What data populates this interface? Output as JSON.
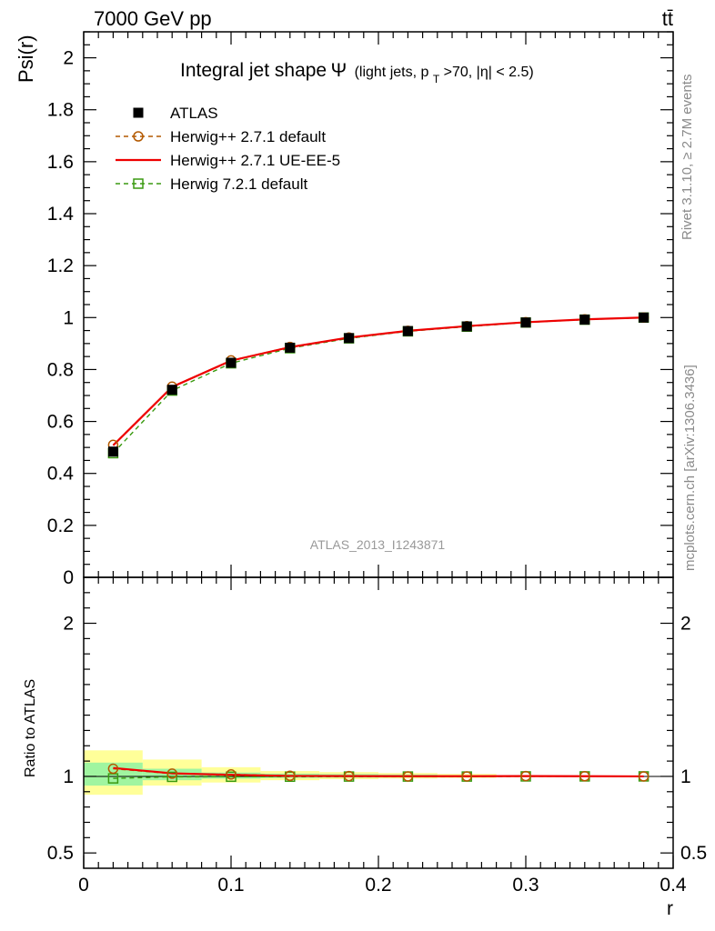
{
  "header": {
    "energy_label": "7000 GeV pp",
    "process_label": "tt̄"
  },
  "side_labels": {
    "rivet": "Rivet 3.1.10, ≥ 2.7M events",
    "mcplots": "mcplots.cern.ch [arXiv:1306.3436]"
  },
  "watermark": "ATLAS_2013_I1243871",
  "colors": {
    "atlas": "#000000",
    "herwigpp_default": "#b35900",
    "herwigpp_ueee5": "#ee0000",
    "herwig7_default": "#3a9a10",
    "band_stat": "#a0f5a0",
    "band_total": "#ffff99"
  },
  "chart_data": [
    {
      "type": "line",
      "title_main": "Integral jet shape",
      "title_symbol": "Ψ",
      "title_sub": "(light jets, p",
      "title_sub_index": "T",
      "title_sub_rest": ">70, |η| < 2.5)",
      "xlabel": "r",
      "ylabel": "Psi(r)",
      "xlim": [
        0,
        0.4
      ],
      "ylim": [
        0,
        2.1
      ],
      "yticks": [
        0,
        0.2,
        0.4,
        0.6,
        0.8,
        1,
        1.2,
        1.4,
        1.6,
        1.8,
        2
      ],
      "ytick_labels": [
        "0",
        "0.2",
        "0.4",
        "0.6",
        "0.8",
        "1",
        "1.2",
        "1.4",
        "1.6",
        "1.8",
        "2"
      ],
      "legend_position": "top-left",
      "x": [
        0.02,
        0.06,
        0.1,
        0.14,
        0.18,
        0.22,
        0.26,
        0.3,
        0.34,
        0.38
      ],
      "series": [
        {
          "name": "ATLAS",
          "style": "data",
          "values": [
            0.484,
            0.722,
            0.826,
            0.884,
            0.921,
            0.948,
            0.966,
            0.981,
            0.992,
            1.0
          ]
        },
        {
          "name": "Herwig++ 2.7.1 default",
          "style": "circle-dashed",
          "values": [
            0.51,
            0.734,
            0.835,
            0.887,
            0.923,
            0.949,
            0.967,
            0.982,
            0.993,
            1.0
          ]
        },
        {
          "name": "Herwig++ 2.7.1 UE-EE-5",
          "style": "solid",
          "values": [
            0.508,
            0.733,
            0.834,
            0.886,
            0.923,
            0.949,
            0.967,
            0.982,
            0.993,
            1.0
          ]
        },
        {
          "name": "Herwig 7.2.1 default",
          "style": "square-dashed",
          "values": [
            0.478,
            0.719,
            0.824,
            0.882,
            0.92,
            0.947,
            0.965,
            0.981,
            0.992,
            1.0
          ]
        }
      ]
    },
    {
      "type": "line",
      "xlabel": "r",
      "ylabel": "Ratio to ATLAS",
      "xlim": [
        0,
        0.4
      ],
      "ylim": [
        0.4,
        2.3
      ],
      "yticks": [
        0.5,
        1,
        2
      ],
      "ytick_labels": [
        "0.5",
        "1",
        "2"
      ],
      "xticks": [
        0,
        0.1,
        0.2,
        0.3,
        0.4
      ],
      "xtick_labels": [
        "0",
        "0.1",
        "0.2",
        "0.3",
        "0.4"
      ],
      "x": [
        0.02,
        0.06,
        0.1,
        0.14,
        0.18,
        0.22,
        0.26,
        0.3,
        0.34,
        0.38
      ],
      "x_edges": [
        0,
        0.04,
        0.08,
        0.12,
        0.16,
        0.2,
        0.24,
        0.28,
        0.32,
        0.36,
        0.4
      ],
      "band_stat": [
        [
          0.94,
          1.09
        ],
        [
          0.975,
          1.05
        ],
        [
          0.985,
          1.025
        ],
        [
          0.99,
          1.018
        ],
        [
          0.992,
          1.015
        ],
        [
          0.993,
          1.012
        ],
        [
          0.995,
          1.008
        ],
        [
          0.997,
          1.004
        ],
        [
          0.998,
          1.002
        ],
        [
          0.999,
          1.001
        ]
      ],
      "band_total": [
        [
          0.88,
          1.17
        ],
        [
          0.94,
          1.11
        ],
        [
          0.96,
          1.06
        ],
        [
          0.975,
          1.035
        ],
        [
          0.982,
          1.028
        ],
        [
          0.986,
          1.022
        ],
        [
          0.99,
          1.016
        ],
        [
          0.996,
          1.005
        ],
        [
          0.998,
          1.002
        ],
        [
          0.999,
          1.001
        ]
      ],
      "series": [
        {
          "name": "Herwig++ 2.7.1 default",
          "style": "circle-dashed",
          "values": [
            1.05,
            1.018,
            1.013,
            1.004,
            1.002,
            1.0,
            1.0,
            1.002,
            1.001,
            1.0
          ]
        },
        {
          "name": "Herwig++ 2.7.1 UE-EE-5",
          "style": "solid",
          "values": [
            1.055,
            1.02,
            1.01,
            1.003,
            1.002,
            1.001,
            1.001,
            1.002,
            1.001,
            1.0
          ]
        },
        {
          "name": "Herwig 7.2.1 default",
          "style": "square-dashed",
          "values": [
            0.987,
            0.997,
            0.998,
            0.998,
            0.999,
            0.999,
            0.999,
            1.0,
            1.0,
            1.0
          ]
        }
      ]
    }
  ]
}
